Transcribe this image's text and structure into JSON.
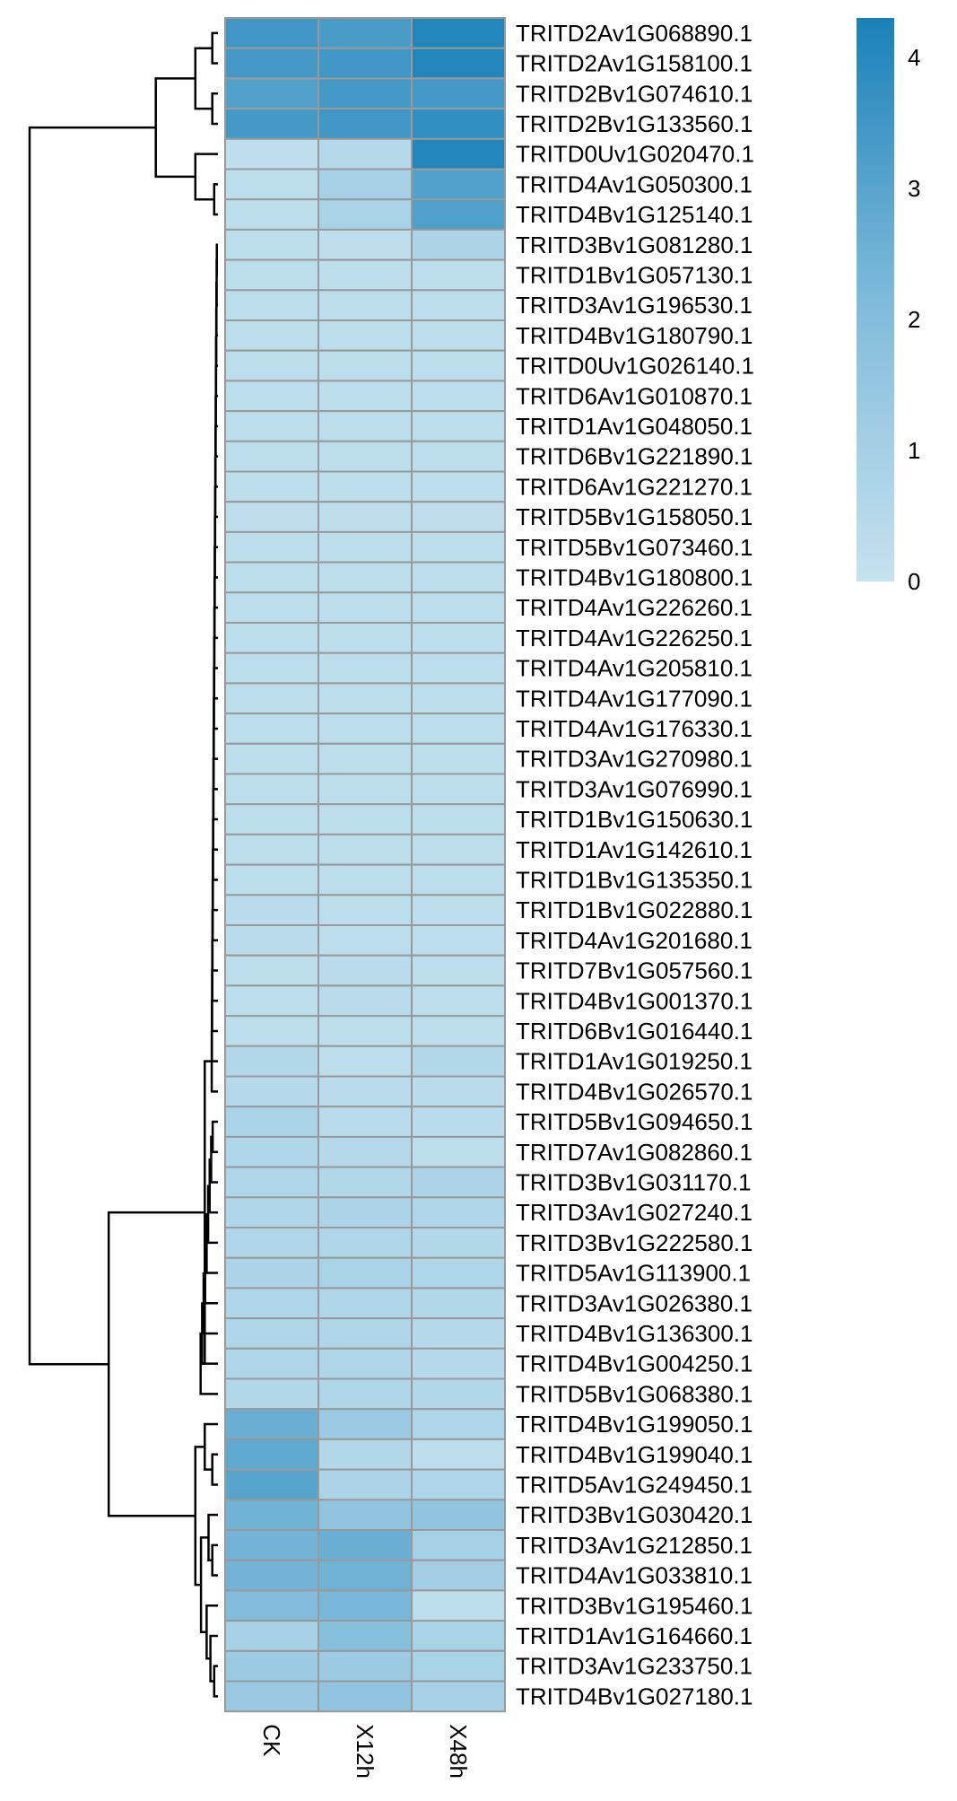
{
  "chart_data": {
    "type": "heatmap",
    "columns": [
      "CK",
      "X12h",
      "X48h"
    ],
    "rows": [
      {
        "label": "TRITD2Av1G068890.1",
        "values": [
          3.5,
          3.3,
          4.1
        ]
      },
      {
        "label": "TRITD2Av1G158100.1",
        "values": [
          3.4,
          3.5,
          4.1
        ]
      },
      {
        "label": "TRITD2Bv1G074610.1",
        "values": [
          3.1,
          3.4,
          3.4
        ]
      },
      {
        "label": "TRITD2Bv1G133560.1",
        "values": [
          3.4,
          3.5,
          3.8
        ]
      },
      {
        "label": "TRITD0Uv1G020470.1",
        "values": [
          0.2,
          0.5,
          4.1
        ]
      },
      {
        "label": "TRITD4Av1G050300.1",
        "values": [
          0.3,
          1.0,
          3.1
        ]
      },
      {
        "label": "TRITD4Bv1G125140.1",
        "values": [
          0.3,
          0.9,
          3.2
        ]
      },
      {
        "label": "TRITD3Bv1G081280.1",
        "values": [
          0.3,
          0.2,
          0.8
        ]
      },
      {
        "label": "TRITD1Bv1G057130.1",
        "values": [
          0.3,
          0.3,
          0.3
        ]
      },
      {
        "label": "TRITD3Av1G196530.1",
        "values": [
          0.3,
          0.3,
          0.3
        ]
      },
      {
        "label": "TRITD4Bv1G180790.1",
        "values": [
          0.3,
          0.3,
          0.3
        ]
      },
      {
        "label": "TRITD0Uv1G026140.1",
        "values": [
          0.3,
          0.3,
          0.3
        ]
      },
      {
        "label": "TRITD6Av1G010870.1",
        "values": [
          0.3,
          0.3,
          0.3
        ]
      },
      {
        "label": "TRITD1Av1G048050.1",
        "values": [
          0.3,
          0.3,
          0.3
        ]
      },
      {
        "label": "TRITD6Bv1G221890.1",
        "values": [
          0.3,
          0.3,
          0.3
        ]
      },
      {
        "label": "TRITD6Av1G221270.1",
        "values": [
          0.3,
          0.3,
          0.3
        ]
      },
      {
        "label": "TRITD5Bv1G158050.1",
        "values": [
          0.3,
          0.3,
          0.3
        ]
      },
      {
        "label": "TRITD5Bv1G073460.1",
        "values": [
          0.3,
          0.3,
          0.3
        ]
      },
      {
        "label": "TRITD4Bv1G180800.1",
        "values": [
          0.3,
          0.3,
          0.3
        ]
      },
      {
        "label": "TRITD4Av1G226260.1",
        "values": [
          0.3,
          0.3,
          0.3
        ]
      },
      {
        "label": "TRITD4Av1G226250.1",
        "values": [
          0.3,
          0.3,
          0.3
        ]
      },
      {
        "label": "TRITD4Av1G205810.1",
        "values": [
          0.3,
          0.3,
          0.3
        ]
      },
      {
        "label": "TRITD4Av1G177090.1",
        "values": [
          0.3,
          0.3,
          0.3
        ]
      },
      {
        "label": "TRITD4Av1G176330.1",
        "values": [
          0.3,
          0.3,
          0.3
        ]
      },
      {
        "label": "TRITD3Av1G270980.1",
        "values": [
          0.3,
          0.3,
          0.3
        ]
      },
      {
        "label": "TRITD3Av1G076990.1",
        "values": [
          0.3,
          0.3,
          0.3
        ]
      },
      {
        "label": "TRITD1Bv1G150630.1",
        "values": [
          0.3,
          0.3,
          0.3
        ]
      },
      {
        "label": "TRITD1Av1G142610.1",
        "values": [
          0.3,
          0.3,
          0.3
        ]
      },
      {
        "label": "TRITD1Bv1G135350.1",
        "values": [
          0.3,
          0.3,
          0.3
        ]
      },
      {
        "label": "TRITD1Bv1G022880.1",
        "values": [
          0.4,
          0.3,
          0.3
        ]
      },
      {
        "label": "TRITD4Av1G201680.1",
        "values": [
          0.4,
          0.3,
          0.3
        ]
      },
      {
        "label": "TRITD7Bv1G057560.1",
        "values": [
          0.3,
          0.4,
          0.3
        ]
      },
      {
        "label": "TRITD4Bv1G001370.1",
        "values": [
          0.3,
          0.4,
          0.3
        ]
      },
      {
        "label": "TRITD6Bv1G016440.1",
        "values": [
          0.3,
          0.3,
          0.3
        ]
      },
      {
        "label": "TRITD1Av1G019250.1",
        "values": [
          0.6,
          0.3,
          0.6
        ]
      },
      {
        "label": "TRITD4Bv1G026570.1",
        "values": [
          0.5,
          0.4,
          0.4
        ]
      },
      {
        "label": "TRITD5Bv1G094650.1",
        "values": [
          0.9,
          0.4,
          0.4
        ]
      },
      {
        "label": "TRITD7Av1G082860.1",
        "values": [
          0.7,
          0.5,
          0.3
        ]
      },
      {
        "label": "TRITD3Bv1G031170.1",
        "values": [
          0.7,
          0.6,
          0.8
        ]
      },
      {
        "label": "TRITD3Av1G027240.1",
        "values": [
          0.7,
          0.8,
          0.7
        ]
      },
      {
        "label": "TRITD3Bv1G222580.1",
        "values": [
          0.7,
          0.7,
          0.6
        ]
      },
      {
        "label": "TRITD5Av1G113900.1",
        "values": [
          0.8,
          0.9,
          0.7
        ]
      },
      {
        "label": "TRITD3Av1G026380.1",
        "values": [
          0.7,
          0.7,
          0.6
        ]
      },
      {
        "label": "TRITD4Bv1G136300.1",
        "values": [
          0.7,
          0.7,
          0.5
        ]
      },
      {
        "label": "TRITD4Bv1G004250.1",
        "values": [
          0.7,
          0.7,
          0.5
        ]
      },
      {
        "label": "TRITD5Bv1G068380.1",
        "values": [
          0.6,
          0.7,
          0.6
        ]
      },
      {
        "label": "TRITD4Bv1G199050.1",
        "values": [
          2.6,
          1.3,
          0.7
        ]
      },
      {
        "label": "TRITD4Bv1G199040.1",
        "values": [
          2.8,
          0.6,
          0.3
        ]
      },
      {
        "label": "TRITD5Av1G249450.1",
        "values": [
          3.0,
          0.8,
          0.7
        ]
      },
      {
        "label": "TRITD3Bv1G030420.1",
        "values": [
          2.5,
          1.6,
          1.6
        ]
      },
      {
        "label": "TRITD3Av1G212850.1",
        "values": [
          2.4,
          2.6,
          1.0
        ]
      },
      {
        "label": "TRITD4Av1G033810.1",
        "values": [
          2.4,
          2.5,
          1.1
        ]
      },
      {
        "label": "TRITD3Bv1G195460.1",
        "values": [
          2.1,
          2.3,
          0.3
        ]
      },
      {
        "label": "TRITD1Av1G164660.1",
        "values": [
          1.0,
          1.9,
          0.9
        ]
      },
      {
        "label": "TRITD3Av1G233750.1",
        "values": [
          1.3,
          1.3,
          0.9
        ]
      },
      {
        "label": "TRITD4Bv1G027180.1",
        "values": [
          1.4,
          1.6,
          1.0
        ]
      }
    ],
    "color_scale": {
      "min": 0,
      "max": 4.3,
      "low_color": "#C6E2EF",
      "mid_color": "#7FBBDA",
      "high_color": "#1A81B8",
      "ticks": [
        0,
        1,
        2,
        3,
        4
      ]
    },
    "cell_border_color": "#999999",
    "dendrogram": "row"
  }
}
